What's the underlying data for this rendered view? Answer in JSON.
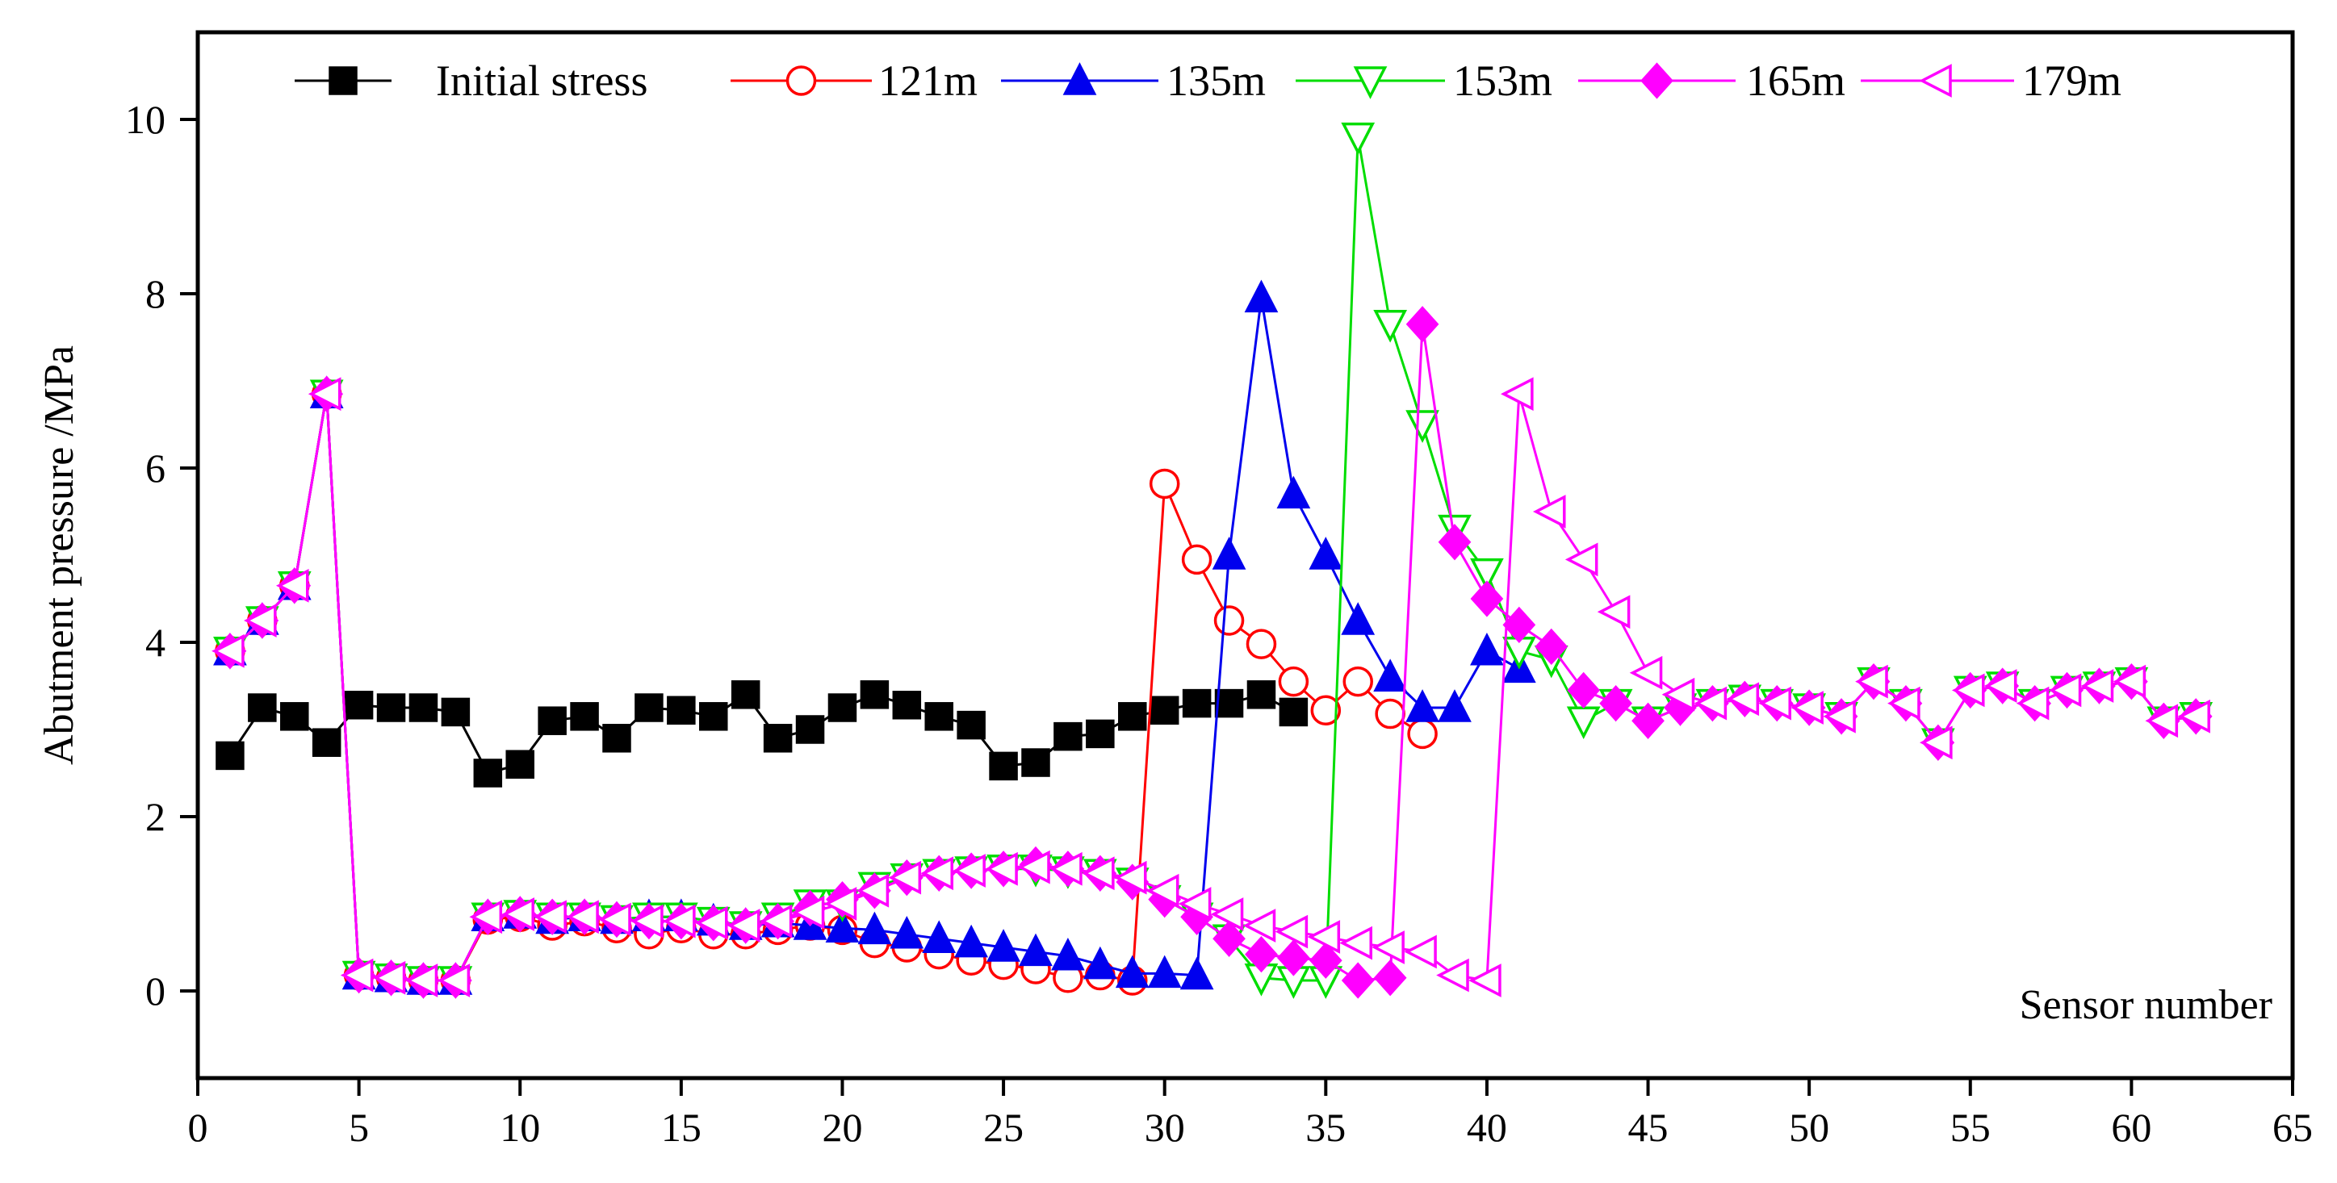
{
  "chart_data": {
    "type": "line",
    "title": "",
    "xlabel": "Sensor number",
    "ylabel": "Abutment pressure /MPa",
    "xlim": [
      0,
      65
    ],
    "ylim": [
      -1,
      11
    ],
    "xticks": [
      0,
      5,
      10,
      15,
      20,
      25,
      30,
      35,
      40,
      45,
      50,
      55,
      60,
      65
    ],
    "yticks": [
      0,
      2,
      4,
      6,
      8,
      10
    ],
    "legend_position": "top",
    "series": [
      {
        "name": "Initial stress",
        "color": "#000000",
        "marker": "square",
        "filled": true,
        "x": [
          1,
          2,
          3,
          4,
          5,
          6,
          7,
          8,
          9,
          10,
          11,
          12,
          13,
          14,
          15,
          16,
          17,
          18,
          19,
          20,
          21,
          22,
          23,
          24,
          25,
          26,
          27,
          28,
          29,
          30,
          31,
          32,
          33,
          34
        ],
        "y": [
          2.7,
          3.25,
          3.15,
          2.85,
          3.28,
          3.25,
          3.25,
          3.2,
          2.5,
          2.6,
          3.1,
          3.15,
          2.9,
          3.25,
          3.22,
          3.15,
          3.4,
          2.9,
          3.0,
          3.25,
          3.4,
          3.28,
          3.15,
          3.05,
          2.58,
          2.62,
          2.92,
          2.95,
          3.15,
          3.22,
          3.3,
          3.3,
          3.4,
          3.2
        ]
      },
      {
        "name": "121m",
        "color": "#ff0000",
        "marker": "circle",
        "filled": false,
        "x": [
          1,
          2,
          3,
          4,
          5,
          6,
          7,
          8,
          9,
          10,
          11,
          12,
          13,
          14,
          15,
          16,
          17,
          18,
          19,
          20,
          21,
          22,
          23,
          24,
          25,
          26,
          27,
          28,
          29,
          30,
          31,
          32,
          33,
          34,
          35,
          36,
          37,
          38
        ],
        "y": [
          3.9,
          4.25,
          4.65,
          6.85,
          0.18,
          0.15,
          0.12,
          0.12,
          0.82,
          0.85,
          0.75,
          0.8,
          0.72,
          0.65,
          0.72,
          0.65,
          0.65,
          0.7,
          0.75,
          0.7,
          0.55,
          0.5,
          0.42,
          0.35,
          0.3,
          0.25,
          0.15,
          0.18,
          0.12,
          5.82,
          4.95,
          4.25,
          3.98,
          3.55,
          3.22,
          3.55,
          3.18,
          2.95
        ]
      },
      {
        "name": "135m",
        "color": "#0000ee",
        "marker": "triangle-up",
        "filled": true,
        "x": [
          1,
          2,
          3,
          4,
          5,
          6,
          7,
          8,
          9,
          10,
          11,
          12,
          13,
          14,
          15,
          16,
          17,
          18,
          19,
          20,
          21,
          22,
          23,
          24,
          25,
          26,
          27,
          28,
          29,
          30,
          31,
          32,
          33,
          34,
          35,
          36,
          37,
          38,
          39,
          40,
          41
        ],
        "y": [
          3.9,
          4.25,
          4.65,
          6.85,
          0.18,
          0.15,
          0.12,
          0.12,
          0.85,
          0.88,
          0.82,
          0.85,
          0.82,
          0.85,
          0.85,
          0.8,
          0.75,
          0.78,
          0.75,
          0.72,
          0.7,
          0.65,
          0.6,
          0.55,
          0.5,
          0.45,
          0.4,
          0.3,
          0.2,
          0.2,
          0.18,
          5.0,
          7.95,
          5.7,
          5.0,
          4.25,
          3.6,
          3.25,
          3.25,
          3.9,
          3.7
        ]
      },
      {
        "name": "153m",
        "color": "#00dd00",
        "marker": "triangle-down",
        "filled": false,
        "x": [
          1,
          2,
          3,
          4,
          5,
          6,
          7,
          8,
          9,
          10,
          11,
          12,
          13,
          14,
          15,
          16,
          17,
          18,
          19,
          20,
          21,
          22,
          23,
          24,
          25,
          26,
          27,
          28,
          29,
          30,
          31,
          32,
          33,
          34,
          35,
          36,
          37,
          38,
          39,
          40,
          41,
          42,
          43,
          44,
          45,
          46,
          47,
          48,
          49,
          50,
          51,
          52,
          53,
          54,
          55,
          56,
          57,
          58,
          59,
          60,
          61,
          62
        ],
        "y": [
          3.9,
          4.25,
          4.65,
          6.85,
          0.18,
          0.15,
          0.12,
          0.12,
          0.85,
          0.88,
          0.85,
          0.85,
          0.82,
          0.85,
          0.85,
          0.8,
          0.75,
          0.85,
          1.0,
          1.0,
          1.2,
          1.3,
          1.35,
          1.38,
          1.4,
          1.4,
          1.38,
          1.35,
          1.25,
          1.05,
          0.85,
          0.6,
          0.15,
          0.12,
          0.12,
          9.8,
          7.65,
          6.5,
          5.3,
          4.8,
          3.9,
          3.8,
          3.1,
          3.3,
          3.1,
          3.25,
          3.3,
          3.35,
          3.3,
          3.25,
          3.15,
          3.55,
          3.3,
          2.85,
          3.45,
          3.5,
          3.3,
          3.45,
          3.5,
          3.55,
          3.1,
          3.15
        ]
      },
      {
        "name": "165m",
        "color": "#ff00ff",
        "marker": "diamond",
        "filled": true,
        "x": [
          1,
          2,
          3,
          4,
          5,
          6,
          7,
          8,
          9,
          10,
          11,
          12,
          13,
          14,
          15,
          16,
          17,
          18,
          19,
          20,
          21,
          22,
          23,
          24,
          25,
          26,
          27,
          28,
          29,
          30,
          31,
          32,
          33,
          34,
          35,
          36,
          37,
          38,
          39,
          40,
          41,
          42,
          43,
          44,
          45,
          46,
          47,
          48,
          49,
          50,
          51,
          52,
          53,
          54,
          55,
          56,
          57,
          58,
          59,
          60,
          61,
          62
        ],
        "y": [
          3.9,
          4.25,
          4.65,
          6.85,
          0.18,
          0.15,
          0.12,
          0.12,
          0.85,
          0.88,
          0.85,
          0.85,
          0.82,
          0.8,
          0.8,
          0.78,
          0.75,
          0.8,
          0.95,
          1.05,
          1.15,
          1.3,
          1.35,
          1.38,
          1.4,
          1.45,
          1.4,
          1.35,
          1.25,
          1.05,
          0.85,
          0.6,
          0.42,
          0.38,
          0.35,
          0.12,
          0.15,
          7.65,
          5.15,
          4.5,
          4.2,
          3.95,
          3.45,
          3.3,
          3.1,
          3.25,
          3.3,
          3.35,
          3.3,
          3.25,
          3.15,
          3.55,
          3.3,
          2.85,
          3.45,
          3.5,
          3.3,
          3.45,
          3.5,
          3.55,
          3.1,
          3.15
        ]
      },
      {
        "name": "179m",
        "color": "#ff00ff",
        "marker": "triangle-left",
        "filled": false,
        "x": [
          1,
          2,
          3,
          4,
          5,
          6,
          7,
          8,
          9,
          10,
          11,
          12,
          13,
          14,
          15,
          16,
          17,
          18,
          19,
          20,
          21,
          22,
          23,
          24,
          25,
          26,
          27,
          28,
          29,
          30,
          31,
          32,
          33,
          34,
          35,
          36,
          37,
          38,
          39,
          40,
          41,
          42,
          43,
          44,
          45,
          46,
          47,
          48,
          49,
          50,
          51,
          52,
          53,
          54,
          55,
          56,
          57,
          58,
          59,
          60,
          61,
          62
        ],
        "y": [
          3.9,
          4.25,
          4.65,
          6.85,
          0.18,
          0.15,
          0.12,
          0.12,
          0.85,
          0.88,
          0.85,
          0.85,
          0.82,
          0.8,
          0.8,
          0.78,
          0.75,
          0.8,
          0.9,
          1.0,
          1.15,
          1.3,
          1.35,
          1.38,
          1.4,
          1.42,
          1.4,
          1.35,
          1.3,
          1.15,
          1.0,
          0.88,
          0.75,
          0.68,
          0.62,
          0.55,
          0.5,
          0.45,
          0.18,
          0.12,
          6.85,
          5.5,
          4.95,
          4.35,
          3.65,
          3.4,
          3.3,
          3.35,
          3.3,
          3.25,
          3.15,
          3.55,
          3.3,
          2.85,
          3.45,
          3.5,
          3.3,
          3.45,
          3.5,
          3.55,
          3.1,
          3.15
        ]
      }
    ]
  }
}
